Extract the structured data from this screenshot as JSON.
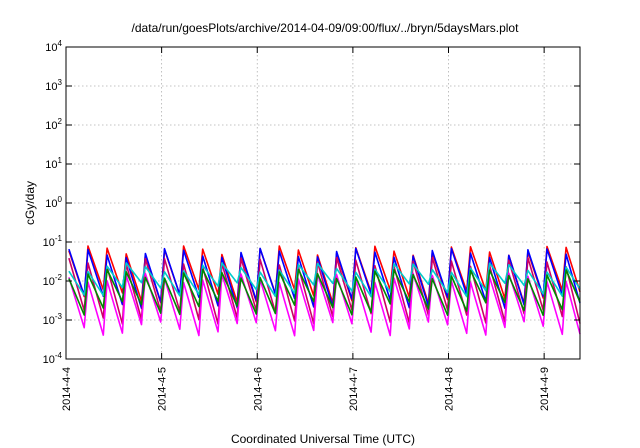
{
  "chart_data": {
    "type": "line",
    "title": "/data/run/goesPlots/archive/2014-04-09/09:00/flux/../bryn/5daysMars.plot",
    "xlabel": "Coordinated Universal Time (UTC)",
    "ylabel": "cGy/day",
    "yscale": "log",
    "ylim": [
      0.0001,
      10000
    ],
    "xlim": [
      "2014-04-04 00:00",
      "2014-04-09 09:00"
    ],
    "x_ticks": [
      "2014-4-4",
      "2014-4-5",
      "2014-4-6",
      "2014-4-7",
      "2014-4-8",
      "2014-4-9"
    ],
    "y_ticks": [
      {
        "base": "10",
        "exp": "-4",
        "value": 0.0001
      },
      {
        "base": "10",
        "exp": "-3",
        "value": 0.001
      },
      {
        "base": "10",
        "exp": "-2",
        "value": 0.01
      },
      {
        "base": "10",
        "exp": "-1",
        "value": 0.1
      },
      {
        "base": "10",
        "exp": "0",
        "value": 1
      },
      {
        "base": "10",
        "exp": "1",
        "value": 10
      },
      {
        "base": "10",
        "exp": "2",
        "value": 100
      },
      {
        "base": "10",
        "exp": "3",
        "value": 1000
      },
      {
        "base": "10",
        "exp": "4",
        "value": 10000
      }
    ],
    "grid": true,
    "legend": "none",
    "cycle_hours": 4.8,
    "series": [
      {
        "color": "#ff0000",
        "peak": 0.06,
        "trough": 0.004
      },
      {
        "color": "#0000ff",
        "peak": 0.052,
        "trough": 0.003
      },
      {
        "color": "#cc0066",
        "peak": 0.03,
        "trough": 0.0012
      },
      {
        "color": "#ff00ff",
        "peak": 0.012,
        "trough": 0.0006
      },
      {
        "color": "#00cccc",
        "peak": 0.022,
        "trough": 0.006
      },
      {
        "color": "#008800",
        "peak": 0.015,
        "trough": 0.002
      }
    ]
  }
}
